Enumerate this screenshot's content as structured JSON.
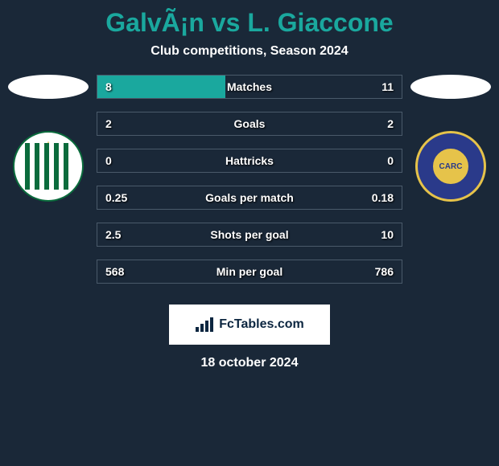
{
  "title": "GalvÃ¡n vs L. Giaccone",
  "subtitle": "Club competitions, Season 2024",
  "date": "18 october 2024",
  "brand": "FcTables.com",
  "colors": {
    "background": "#1a2838",
    "accent": "#1aa89e",
    "border": "#4a5a6a",
    "white": "#ffffff",
    "team_left_primary": "#0a6b3c",
    "team_left_secondary": "#ffffff",
    "team_right_primary": "#2a3a8a",
    "team_right_secondary": "#e6c34a"
  },
  "stats": [
    {
      "label": "Matches",
      "left_val": "8",
      "right_val": "11",
      "left_pct": 42,
      "right_pct": 0
    },
    {
      "label": "Goals",
      "left_val": "2",
      "right_val": "2",
      "left_pct": 0,
      "right_pct": 0
    },
    {
      "label": "Hattricks",
      "left_val": "0",
      "right_val": "0",
      "left_pct": 0,
      "right_pct": 0
    },
    {
      "label": "Goals per match",
      "left_val": "0.25",
      "right_val": "0.18",
      "left_pct": 0,
      "right_pct": 0
    },
    {
      "label": "Shots per goal",
      "left_val": "2.5",
      "right_val": "10",
      "left_pct": 0,
      "right_pct": 0
    },
    {
      "label": "Min per goal",
      "left_val": "568",
      "right_val": "786",
      "left_pct": 0,
      "right_pct": 0
    }
  ]
}
